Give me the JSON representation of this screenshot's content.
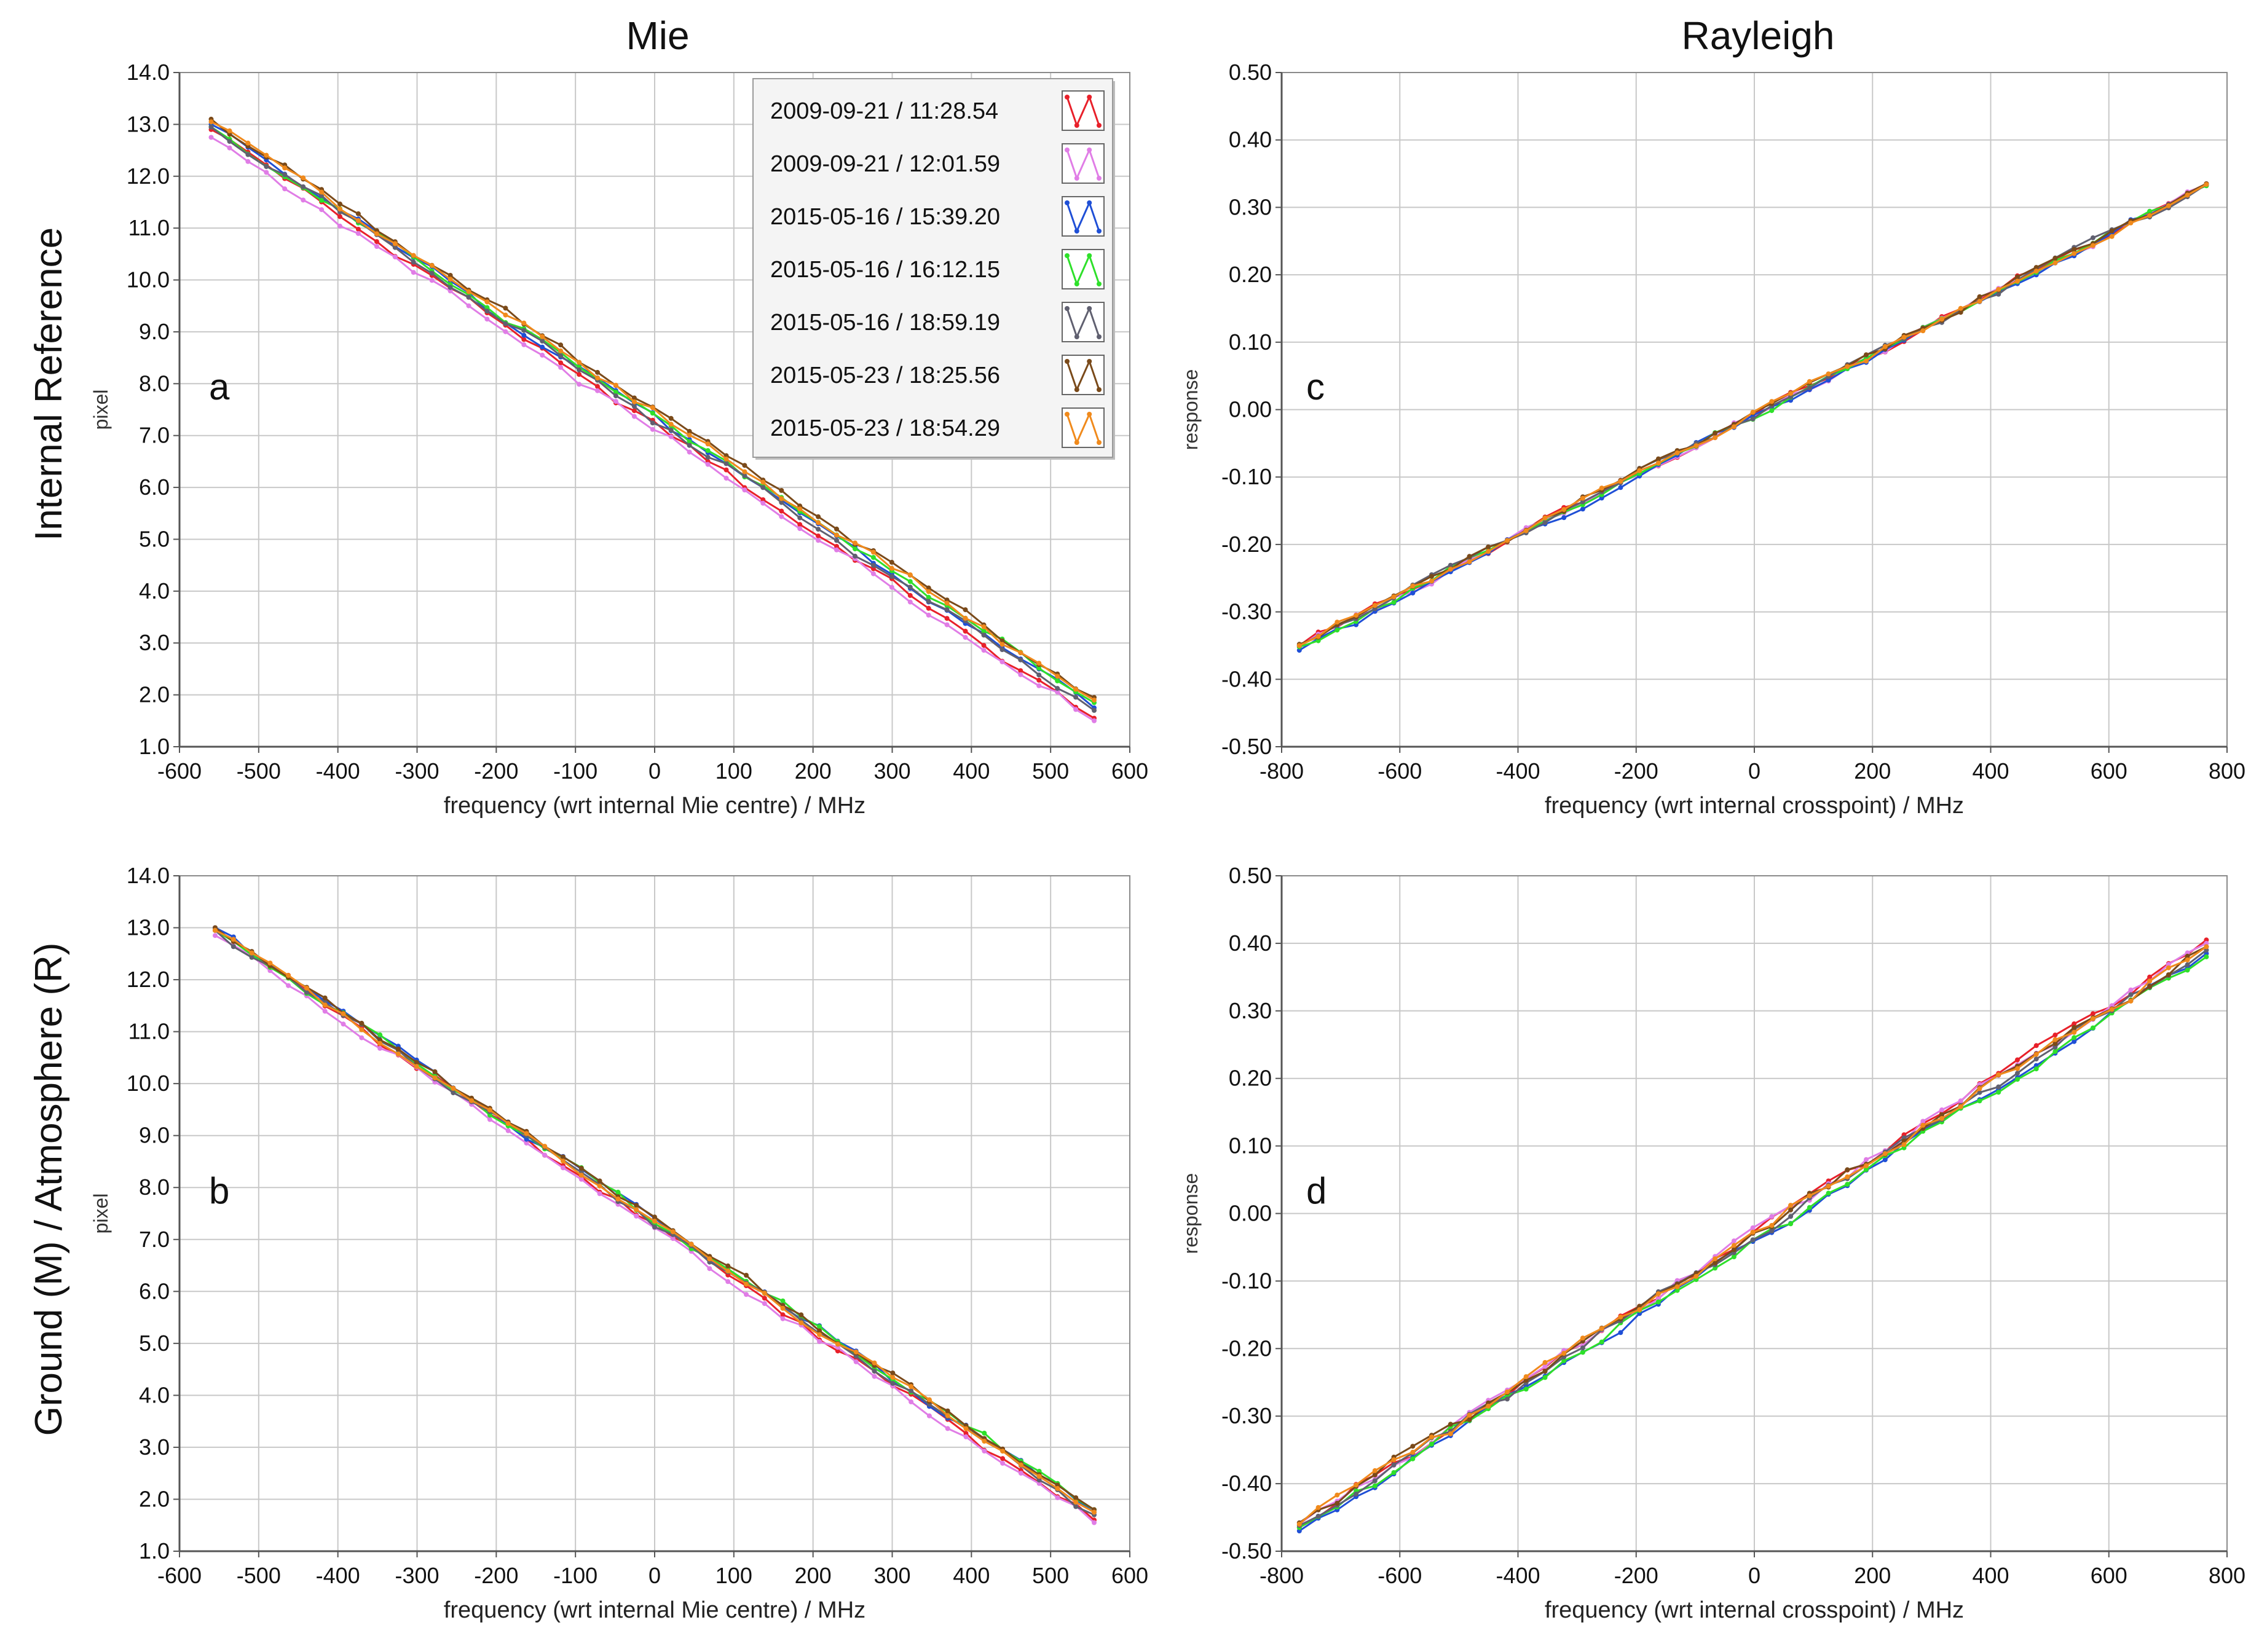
{
  "figure": {
    "column_titles": [
      "Mie",
      "Rayleigh"
    ],
    "row_titles": [
      "Internal Reference",
      "Ground (M) / Atmosphere (R)"
    ]
  },
  "legend": {
    "entries": [
      {
        "label": "2009-09-21 / 11:28.54",
        "color": "#e8202a"
      },
      {
        "label": "2009-09-21 / 12:01.59",
        "color": "#e07de6"
      },
      {
        "label": "2015-05-16 / 15:39.20",
        "color": "#1f4fd6"
      },
      {
        "label": "2015-05-16 / 16:12.15",
        "color": "#2ee02a"
      },
      {
        "label": "2015-05-16 / 18:59.19",
        "color": "#606070"
      },
      {
        "label": "2015-05-23 / 18:25.56",
        "color": "#7a4a1a"
      },
      {
        "label": "2015-05-23 / 18:54.29",
        "color": "#f08a1c"
      }
    ]
  },
  "chart_data": [
    {
      "id": "a",
      "type": "line",
      "panel_letter": "a",
      "xlabel": "frequency (wrt internal Mie centre) / MHz",
      "ylabel": "pixel",
      "xlim": [
        -600,
        600
      ],
      "ylim": [
        1.0,
        14.0
      ],
      "xticks": [
        "-600",
        "-500",
        "-400",
        "-300",
        "-200",
        "-100",
        "0",
        "100",
        "200",
        "300",
        "400",
        "500",
        "600"
      ],
      "yticks": [
        "1.0",
        "2.0",
        "3.0",
        "4.0",
        "5.0",
        "6.0",
        "7.0",
        "8.0",
        "9.0",
        "10.0",
        "11.0",
        "12.0",
        "13.0",
        "14.0"
      ],
      "x_range": [
        -560,
        555
      ],
      "series": [
        {
          "name": "2009-09-21 / 11:28.54",
          "y_start": 12.9,
          "y_end": 1.55
        },
        {
          "name": "2009-09-21 / 12:01.59",
          "y_start": 12.75,
          "y_end": 1.5
        },
        {
          "name": "2015-05-16 / 15:39.20",
          "y_start": 13.0,
          "y_end": 1.75
        },
        {
          "name": "2015-05-16 / 16:12.15",
          "y_start": 12.95,
          "y_end": 1.85
        },
        {
          "name": "2015-05-16 / 18:59.19",
          "y_start": 12.95,
          "y_end": 1.7
        },
        {
          "name": "2015-05-23 / 18:25.56",
          "y_start": 13.1,
          "y_end": 1.95
        },
        {
          "name": "2015-05-23 / 18:54.29",
          "y_start": 13.05,
          "y_end": 1.9
        }
      ]
    },
    {
      "id": "c",
      "type": "line",
      "panel_letter": "c",
      "xlabel": "frequency (wrt internal crosspoint) / MHz",
      "ylabel": "response",
      "xlim": [
        -800,
        800
      ],
      "ylim": [
        -0.5,
        0.5
      ],
      "xticks": [
        "-800",
        "-600",
        "-400",
        "-200",
        "0",
        "200",
        "400",
        "600",
        "800"
      ],
      "yticks": [
        "-0.50",
        "-0.40",
        "-0.30",
        "-0.20",
        "-0.10",
        "0.00",
        "0.10",
        "0.20",
        "0.30",
        "0.40",
        "0.50"
      ],
      "x_range": [
        -770,
        765
      ],
      "series": [
        {
          "name": "2009-09-21 / 11:28.54",
          "y_start": -0.35,
          "y_end": 0.335
        },
        {
          "name": "2009-09-21 / 12:01.59",
          "y_start": -0.352,
          "y_end": 0.333
        },
        {
          "name": "2015-05-16 / 15:39.20",
          "y_start": -0.357,
          "y_end": 0.333
        },
        {
          "name": "2015-05-16 / 16:12.15",
          "y_start": -0.352,
          "y_end": 0.332
        },
        {
          "name": "2015-05-16 / 18:59.19",
          "y_start": -0.35,
          "y_end": 0.334
        },
        {
          "name": "2015-05-23 / 18:25.56",
          "y_start": -0.348,
          "y_end": 0.335
        },
        {
          "name": "2015-05-23 / 18:54.29",
          "y_start": -0.35,
          "y_end": 0.334
        }
      ]
    },
    {
      "id": "b",
      "type": "line",
      "panel_letter": "b",
      "xlabel": "frequency (wrt internal Mie centre) / MHz",
      "ylabel": "pixel",
      "xlim": [
        -600,
        600
      ],
      "ylim": [
        1.0,
        14.0
      ],
      "xticks": [
        "-600",
        "-500",
        "-400",
        "-300",
        "-200",
        "-100",
        "0",
        "100",
        "200",
        "300",
        "400",
        "500",
        "600"
      ],
      "yticks": [
        "1.0",
        "2.0",
        "3.0",
        "4.0",
        "5.0",
        "6.0",
        "7.0",
        "8.0",
        "9.0",
        "10.0",
        "11.0",
        "12.0",
        "13.0",
        "14.0"
      ],
      "x_range": [
        -555,
        555
      ],
      "series": [
        {
          "name": "2009-09-21 / 11:28.54",
          "y_start": 12.95,
          "y_end": 1.6
        },
        {
          "name": "2009-09-21 / 12:01.59",
          "y_start": 12.85,
          "y_end": 1.55
        },
        {
          "name": "2015-05-16 / 15:39.20",
          "y_start": 13.0,
          "y_end": 1.75
        },
        {
          "name": "2015-05-16 / 16:12.15",
          "y_start": 12.95,
          "y_end": 1.8
        },
        {
          "name": "2015-05-16 / 18:59.19",
          "y_start": 12.95,
          "y_end": 1.7
        },
        {
          "name": "2015-05-23 / 18:25.56",
          "y_start": 13.0,
          "y_end": 1.8
        },
        {
          "name": "2015-05-23 / 18:54.29",
          "y_start": 12.95,
          "y_end": 1.75
        }
      ]
    },
    {
      "id": "d",
      "type": "line",
      "panel_letter": "d",
      "xlabel": "frequency (wrt internal crosspoint) / MHz",
      "ylabel": "response",
      "xlim": [
        -800,
        800
      ],
      "ylim": [
        -0.5,
        0.5
      ],
      "xticks": [
        "-800",
        "-600",
        "-400",
        "-200",
        "0",
        "200",
        "400",
        "600",
        "800"
      ],
      "yticks": [
        "-0.50",
        "-0.40",
        "-0.30",
        "-0.20",
        "-0.10",
        "0.00",
        "0.10",
        "0.20",
        "0.30",
        "0.40",
        "0.50"
      ],
      "x_range": [
        -770,
        765
      ],
      "series": [
        {
          "name": "2009-09-21 / 11:28.54",
          "y_start": -0.465,
          "y_end": 0.405
        },
        {
          "name": "2009-09-21 / 12:01.59",
          "y_start": -0.46,
          "y_end": 0.4
        },
        {
          "name": "2015-05-16 / 15:39.20",
          "y_start": -0.47,
          "y_end": 0.385
        },
        {
          "name": "2015-05-16 / 16:12.15",
          "y_start": -0.465,
          "y_end": 0.38
        },
        {
          "name": "2015-05-16 / 18:59.19",
          "y_start": -0.462,
          "y_end": 0.39
        },
        {
          "name": "2015-05-23 / 18:25.56",
          "y_start": -0.458,
          "y_end": 0.395
        },
        {
          "name": "2015-05-23 / 18:54.29",
          "y_start": -0.46,
          "y_end": 0.395
        }
      ]
    }
  ]
}
